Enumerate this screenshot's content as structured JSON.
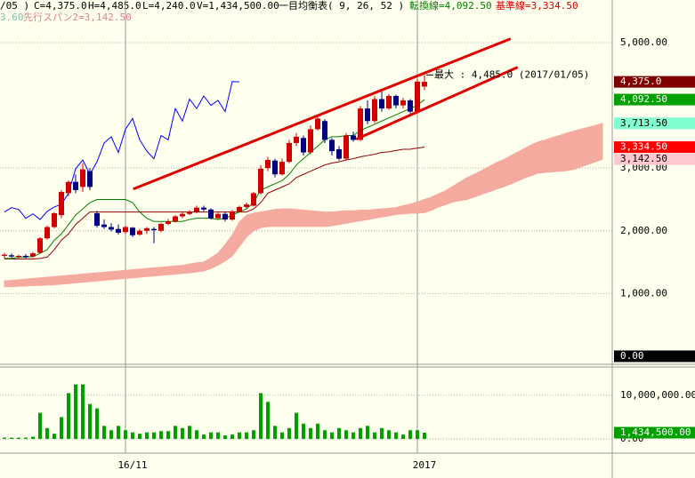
{
  "chart_data": {
    "type": "candlestick",
    "header": {
      "line1": [
        "/05 )",
        "C=4,375.0",
        "H=4,485.0",
        "L=4,240.0",
        "V=1,434,500.00",
        "一目均衡表( 9, 26, 52 )",
        "転換線=4,092.50",
        "基準線=3,334.50"
      ],
      "line2": [
        "3.60",
        "先行スパン2=3,142.50"
      ]
    },
    "categories": [
      null,
      null,
      null,
      null,
      null,
      null,
      null,
      null,
      null,
      null,
      null,
      null,
      null,
      null,
      null,
      null,
      null,
      "16/11",
      null,
      null,
      null,
      null,
      null,
      null,
      null,
      null,
      null,
      null,
      null,
      null,
      null,
      null,
      null,
      null,
      null,
      null,
      null,
      null,
      null,
      null,
      null,
      null,
      null,
      null,
      null,
      null,
      null,
      null,
      null,
      null,
      null,
      null,
      null,
      null,
      null,
      null,
      null,
      null,
      "2017",
      null,
      null,
      null,
      null,
      null,
      null,
      null,
      null,
      null,
      null,
      null,
      null,
      null,
      null,
      null,
      null,
      null,
      null,
      null,
      null,
      null,
      null,
      null,
      null,
      null,
      null
    ],
    "ohlc": [
      [
        1600,
        1650,
        1560,
        1620
      ],
      [
        1610,
        1640,
        1570,
        1590
      ],
      [
        1590,
        1620,
        1560,
        1600
      ],
      [
        1600,
        1630,
        1560,
        1580
      ],
      [
        1590,
        1660,
        1570,
        1640
      ],
      [
        1650,
        1900,
        1640,
        1880
      ],
      [
        1880,
        2080,
        1860,
        2060
      ],
      [
        2060,
        2300,
        2040,
        2280
      ],
      [
        2250,
        2650,
        2200,
        2620
      ],
      [
        2600,
        2800,
        2550,
        2780
      ],
      [
        2780,
        2900,
        2600,
        2650
      ],
      [
        2700,
        3080,
        2620,
        2980
      ],
      [
        2950,
        3000,
        2650,
        2700
      ],
      [
        2280,
        2320,
        2050,
        2080
      ],
      [
        2100,
        2180,
        2030,
        2060
      ],
      [
        2060,
        2120,
        1990,
        2020
      ],
      [
        2030,
        2100,
        1940,
        1970
      ],
      [
        1980,
        2080,
        1950,
        2060
      ],
      [
        2050,
        2060,
        1900,
        1930
      ],
      [
        1940,
        2030,
        1920,
        2000
      ],
      [
        2000,
        2060,
        1950,
        2040
      ],
      [
        2030,
        2060,
        1800,
        2010
      ],
      [
        2000,
        2130,
        1980,
        2110
      ],
      [
        2110,
        2190,
        2090,
        2150
      ],
      [
        2150,
        2250,
        2130,
        2230
      ],
      [
        2230,
        2290,
        2200,
        2270
      ],
      [
        2270,
        2330,
        2250,
        2300
      ],
      [
        2300,
        2400,
        2280,
        2370
      ],
      [
        2370,
        2400,
        2310,
        2340
      ],
      [
        2340,
        2360,
        2180,
        2200
      ],
      [
        2200,
        2290,
        2180,
        2270
      ],
      [
        2270,
        2300,
        2150,
        2180
      ],
      [
        2180,
        2330,
        2160,
        2310
      ],
      [
        2310,
        2400,
        2290,
        2380
      ],
      [
        2380,
        2450,
        2350,
        2420
      ],
      [
        2400,
        2620,
        2390,
        2600
      ],
      [
        2600,
        3050,
        2580,
        2990
      ],
      [
        3000,
        3180,
        2950,
        3130
      ],
      [
        3120,
        3150,
        2850,
        2900
      ],
      [
        2900,
        3150,
        2880,
        3100
      ],
      [
        3100,
        3450,
        3080,
        3400
      ],
      [
        3400,
        3560,
        3350,
        3500
      ],
      [
        3480,
        3520,
        3200,
        3250
      ],
      [
        3250,
        3680,
        3220,
        3620
      ],
      [
        3620,
        3820,
        3600,
        3790
      ],
      [
        3750,
        3780,
        3400,
        3450
      ],
      [
        3450,
        3480,
        3200,
        3270
      ],
      [
        3300,
        3350,
        3120,
        3150
      ],
      [
        3150,
        3560,
        3130,
        3520
      ],
      [
        3520,
        3580,
        3420,
        3450
      ],
      [
        3450,
        3990,
        3430,
        3950
      ],
      [
        3950,
        4080,
        3700,
        3750
      ],
      [
        3750,
        4150,
        3720,
        4100
      ],
      [
        4100,
        4220,
        3900,
        3950
      ],
      [
        3950,
        4180,
        3930,
        4150
      ],
      [
        4150,
        4170,
        3950,
        4000
      ],
      [
        4000,
        4120,
        3950,
        4080
      ],
      [
        4080,
        4100,
        3870,
        3900
      ],
      [
        3900,
        4420,
        3880,
        4380
      ],
      [
        4300,
        4485,
        4240,
        4375
      ]
    ],
    "up_color": "#d00000",
    "down_color": "#000080",
    "volume": {
      "color": "#00a000",
      "values": [
        300000,
        300000,
        300000,
        300000,
        500000,
        6000000,
        2500000,
        1200000,
        5000000,
        10500000,
        12500000,
        12500000,
        8000000,
        7000000,
        3000000,
        2000000,
        3000000,
        2000000,
        1500000,
        1200000,
        1500000,
        1500000,
        1800000,
        1800000,
        3000000,
        2500000,
        3000000,
        2000000,
        1000000,
        1500000,
        1500000,
        800000,
        1000000,
        1500000,
        1500000,
        2000000,
        10500000,
        8500000,
        3000000,
        1500000,
        2500000,
        6000000,
        3500000,
        2500000,
        3500000,
        2000000,
        1500000,
        2500000,
        2000000,
        1500000,
        2500000,
        3000000,
        1500000,
        2500000,
        2000000,
        1500000,
        1000000,
        2000000,
        2000000,
        1434500
      ]
    },
    "tenkan": {
      "color": "#008000",
      "values": [
        1560,
        1560,
        1580,
        1580,
        1590,
        1640,
        1700,
        1850,
        1950,
        2100,
        2250,
        2350,
        2450,
        2500,
        2500,
        2500,
        2500,
        2500,
        2450,
        2300,
        2200,
        2150,
        2150,
        2150,
        2150,
        2150,
        2180,
        2200,
        2200,
        2200,
        2180,
        2200,
        2250,
        2300,
        2350,
        2450,
        2650,
        2700,
        2750,
        2800,
        2900,
        3050,
        3150,
        3250,
        3350,
        3450,
        3500,
        3500,
        3520,
        3520,
        3600,
        3650,
        3700,
        3750,
        3800,
        3850,
        3900,
        3950,
        4000,
        4092.5
      ]
    },
    "kijun": {
      "color": "#900000",
      "values": [
        1550,
        1550,
        1550,
        1550,
        1550,
        1560,
        1580,
        1700,
        1850,
        1950,
        2100,
        2200,
        2300,
        2300,
        2300,
        2300,
        2300,
        2300,
        2300,
        2300,
        2300,
        2300,
        2300,
        2300,
        2300,
        2300,
        2300,
        2300,
        2300,
        2300,
        2300,
        2300,
        2300,
        2300,
        2300,
        2350,
        2450,
        2600,
        2650,
        2700,
        2750,
        2850,
        2900,
        2950,
        3000,
        3050,
        3080,
        3100,
        3130,
        3150,
        3180,
        3200,
        3220,
        3250,
        3260,
        3280,
        3300,
        3300,
        3320,
        3334.5
      ]
    },
    "chikou": {
      "color": "#0000ff",
      "values": [
        2300,
        2370,
        2340,
        2200,
        2270,
        2180,
        2310,
        2380,
        2420,
        2600,
        2990,
        3130,
        2900,
        3100,
        3400,
        3500,
        3250,
        3620,
        3790,
        3450,
        3270,
        3150,
        3520,
        3450,
        3950,
        3750,
        4100,
        3950,
        4150,
        4000,
        4080,
        3900,
        4380,
        4375
      ]
    },
    "cloud": {
      "color": "#f5aaa0",
      "span1": [
        1200,
        1210,
        1220,
        1230,
        1240,
        1250,
        1260,
        1270,
        1280,
        1290,
        1300,
        1310,
        1320,
        1330,
        1340,
        1350,
        1360,
        1370,
        1380,
        1390,
        1400,
        1410,
        1420,
        1430,
        1440,
        1450,
        1470,
        1490,
        1500,
        1570,
        1645,
        1780,
        1930,
        2140,
        2250,
        2280,
        2300,
        2320,
        2340,
        2350,
        2350,
        2340,
        2330,
        2320,
        2310,
        2300,
        2300,
        2310,
        2320,
        2320,
        2330,
        2330,
        2340,
        2350,
        2360,
        2370,
        2400,
        2425,
        2460,
        2500,
        2540,
        2590,
        2640,
        2710,
        2780,
        2850,
        2900,
        2960,
        3020,
        3080,
        3130,
        3190,
        3250,
        3310,
        3370,
        3420,
        3450,
        3490,
        3520,
        3560,
        3590,
        3620,
        3650,
        3680,
        3713.5
      ],
      "span2": [
        1106,
        1110,
        1115,
        1120,
        1125,
        1130,
        1135,
        1140,
        1150,
        1160,
        1170,
        1180,
        1190,
        1200,
        1210,
        1220,
        1230,
        1240,
        1250,
        1260,
        1270,
        1280,
        1290,
        1300,
        1310,
        1320,
        1330,
        1345,
        1360,
        1400,
        1450,
        1520,
        1600,
        1750,
        1900,
        2000,
        2050,
        2070,
        2070,
        2070,
        2070,
        2070,
        2070,
        2070,
        2070,
        2070,
        2080,
        2100,
        2120,
        2140,
        2160,
        2180,
        2200,
        2220,
        2240,
        2260,
        2270,
        2280,
        2280,
        2290,
        2330,
        2380,
        2420,
        2460,
        2480,
        2500,
        2540,
        2580,
        2620,
        2660,
        2700,
        2740,
        2790,
        2840,
        2880,
        2920,
        2930,
        2940,
        2950,
        2960,
        2980,
        3020,
        3060,
        3100,
        3142.5
      ]
    },
    "trendlines": {
      "color": "#e00000",
      "lines": [
        {
          "x": [
            18.1,
            71.1
          ],
          "y": [
            2666,
            5062
          ]
        },
        {
          "x": [
            49.4,
            72.1
          ],
          "y": [
            3460,
            4608
          ]
        }
      ]
    },
    "annotation": {
      "text": "最大 : 4,485.0 (2017/01/05)",
      "x": 59,
      "y": 4485
    },
    "ylim": [
      -128,
      5425
    ],
    "yticks": [
      {
        "value": 1000,
        "label": "1,000.00"
      },
      {
        "value": 2000,
        "label": "2,000.00"
      },
      {
        "value": 3000,
        "label": "3,000.00"
      },
      {
        "value": 5000,
        "label": "5,000.00"
      }
    ],
    "price_markers": [
      {
        "value": 4375,
        "label": "4,375.0",
        "bg": "#800000",
        "fg": "#ffffff"
      },
      {
        "value": 4092.5,
        "label": "4,092.50",
        "bg": "#00a000",
        "fg": "#ffffff"
      },
      {
        "value": 3713.5,
        "label": "3,713.50",
        "bg": "#80ffd0",
        "fg": "#000000"
      },
      {
        "value": 3334.5,
        "label": "3,334.50",
        "bg": "#ff0000",
        "fg": "#ffffff"
      },
      {
        "value": 3142.5,
        "label": "3,142.50",
        "bg": "#ffc8d0",
        "fg": "#000000"
      },
      {
        "value": 0,
        "label": "0.00",
        "bg": "#000000",
        "fg": "#ffffff"
      }
    ],
    "vlim": [
      -600000,
      16500000
    ],
    "vticks": [
      {
        "value": 0,
        "label": "0.00"
      },
      {
        "value": 10000000,
        "label": "10,000,000.00"
      }
    ],
    "volume_markers": [
      {
        "value": 1434500,
        "label": "1,434,500.00",
        "bg": "#00a000",
        "fg": "#ffffff"
      }
    ],
    "grid": true
  }
}
